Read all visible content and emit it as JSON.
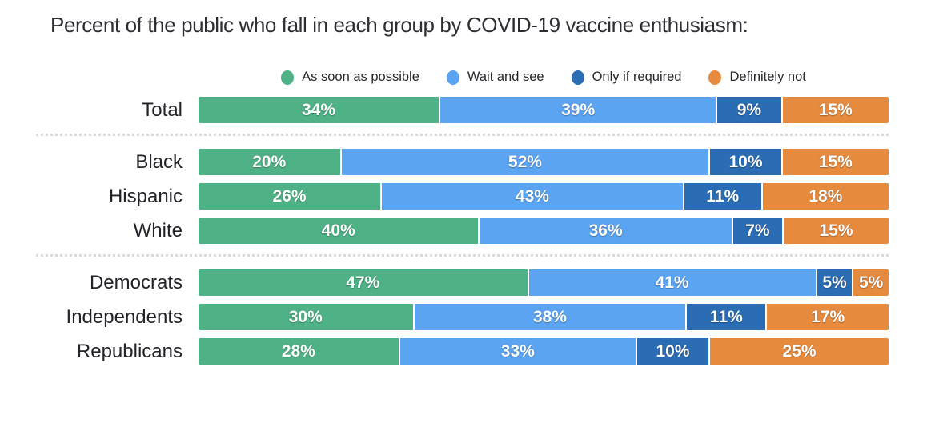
{
  "title": "Percent of the public who fall in each group by COVID-19 vaccine enthusiasm:",
  "chart_data": {
    "type": "bar",
    "orientation": "horizontal-stacked",
    "title": "Percent of the public who fall in each group by COVID-19 vaccine enthusiasm:",
    "value_suffix": "%",
    "legend_position": "top-center",
    "categories": [
      "Total",
      "Black",
      "Hispanic",
      "White",
      "Democrats",
      "Independents",
      "Republicans"
    ],
    "row_groups": [
      [
        "Total"
      ],
      [
        "Black",
        "Hispanic",
        "White"
      ],
      [
        "Democrats",
        "Independents",
        "Republicans"
      ]
    ],
    "series": [
      {
        "name": "As soon as possible",
        "color": "#4FB286",
        "values": [
          34,
          20,
          26,
          40,
          47,
          30,
          28
        ]
      },
      {
        "name": "Wait and see",
        "color": "#5BA4F2",
        "values": [
          39,
          52,
          43,
          36,
          41,
          38,
          33
        ]
      },
      {
        "name": "Only if required",
        "color": "#2A6DB5",
        "values": [
          9,
          10,
          11,
          7,
          5,
          11,
          10
        ]
      },
      {
        "name": "Definitely not",
        "color": "#E68A3E",
        "values": [
          15,
          15,
          18,
          15,
          5,
          17,
          25
        ]
      }
    ]
  }
}
